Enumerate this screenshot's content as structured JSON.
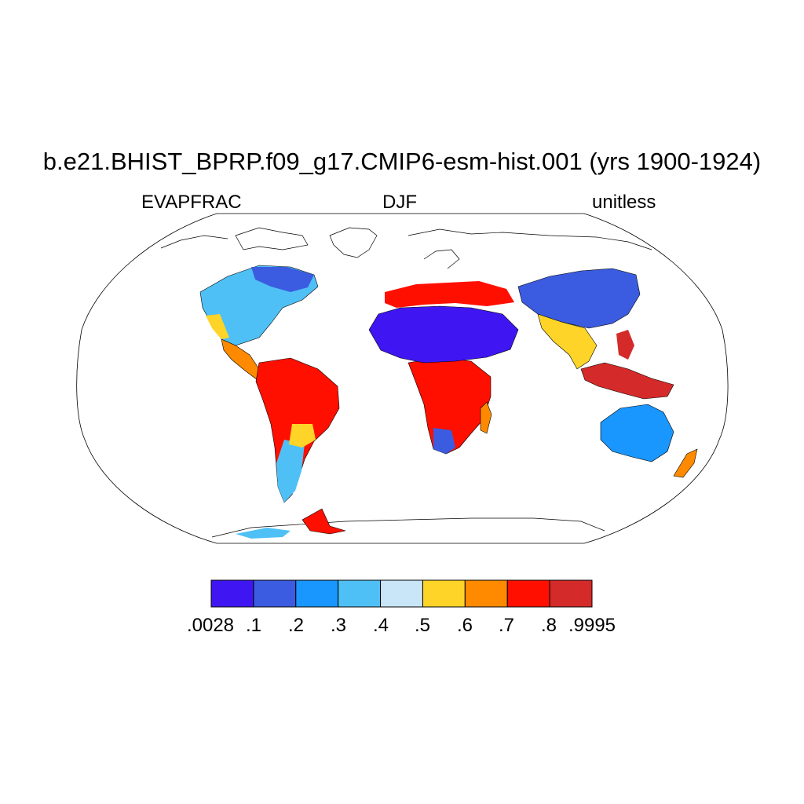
{
  "header": {
    "title": "b.e21.BHIST_BPRP.f09_g17.CMIP6-esm-hist.001 (yrs 1900-1924)",
    "left_label": "EVAPFRAC",
    "center_label": "DJF",
    "right_label": "unitless"
  },
  "map": {
    "projection": "robinson",
    "variable": "EVAPFRAC",
    "season": "DJF"
  },
  "colorbar": {
    "labels": [
      ".0028",
      ".1",
      ".2",
      ".3",
      ".4",
      ".5",
      ".6",
      ".7",
      ".8",
      ".9995"
    ],
    "colors": [
      "#3f16f2",
      "#3b5ce0",
      "#1a96ff",
      "#4fc0f5",
      "#c8e6f8",
      "#ffd428",
      "#ff8a00",
      "#ff0f00",
      "#d52a2a"
    ]
  }
}
